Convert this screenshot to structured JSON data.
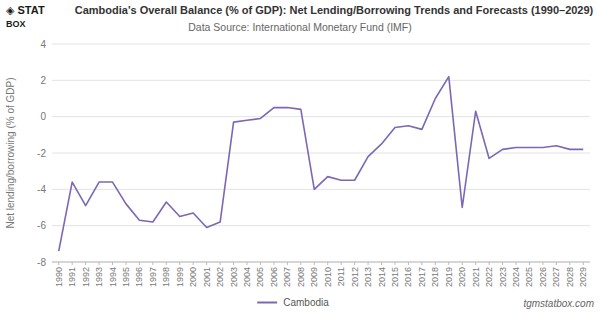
{
  "chart_data": {
    "type": "line",
    "title": "Cambodia's Overall Balance (% of GDP): Net Lending/Borrowing Trends and Forecasts (1990–2029)",
    "subtitle": "Data Source: International Monetary Fund (IMF)",
    "y_label": "Net lending/borrowing (% of GDP)",
    "annotations": [
      "◈ STAT",
      "BOX",
      "tgmstatbox.com"
    ],
    "x": [
      1990,
      1991,
      1992,
      1993,
      1994,
      1995,
      1996,
      1997,
      1998,
      1999,
      2000,
      2001,
      2002,
      2003,
      2004,
      2005,
      2006,
      2007,
      2008,
      2009,
      2010,
      2011,
      2012,
      2013,
      2014,
      2015,
      2016,
      2017,
      2018,
      2019,
      2020,
      2021,
      2022,
      2023,
      2024,
      2025,
      2026,
      2027,
      2028,
      2029
    ],
    "series": [
      {
        "name": "Cambodia",
        "color": "#7b68b5",
        "values": [
          -7.4,
          -3.6,
          -4.9,
          -3.6,
          -3.6,
          -4.8,
          -5.7,
          -5.8,
          -4.7,
          -5.5,
          -5.3,
          -6.1,
          -5.8,
          -0.3,
          -0.2,
          -0.1,
          0.5,
          0.5,
          0.4,
          -4.0,
          -3.3,
          -3.5,
          -3.5,
          -2.2,
          -1.5,
          -0.6,
          -0.5,
          -0.7,
          1.0,
          2.2,
          -5.0,
          0.3,
          -2.3,
          -1.8,
          -1.7,
          -1.7,
          -1.7,
          -1.6,
          -1.8,
          -1.8
        ]
      }
    ],
    "xlim": [
      1989.5,
      2029.5
    ],
    "xticks": [
      1990,
      1991,
      1992,
      1993,
      1994,
      1995,
      1996,
      1997,
      1998,
      1999,
      2000,
      2001,
      2002,
      2003,
      2004,
      2005,
      2006,
      2007,
      2008,
      2009,
      2010,
      2011,
      2012,
      2013,
      2014,
      2015,
      2016,
      2017,
      2018,
      2019,
      2020,
      2021,
      2022,
      2023,
      2024,
      2025,
      2026,
      2027,
      2028,
      2029
    ],
    "ylim": [
      -8,
      4
    ],
    "yticks": [
      -8,
      -6,
      -4,
      -2,
      0,
      2,
      4
    ],
    "grid": true,
    "legend": "bottom"
  }
}
